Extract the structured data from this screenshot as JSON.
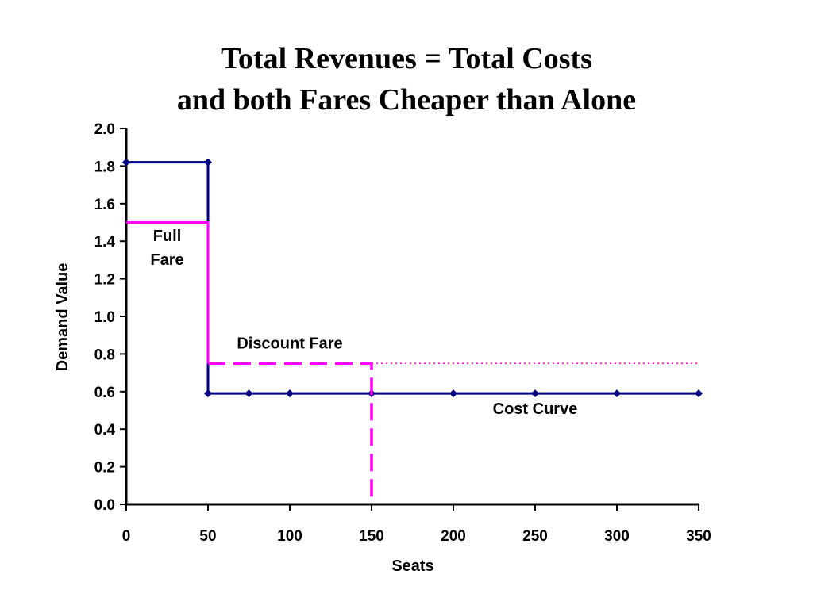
{
  "title_lines": [
    "Total Revenues = Total Costs",
    "and both Fares Cheaper than Alone"
  ],
  "chart_data": {
    "type": "line",
    "xlabel": "Seats",
    "ylabel": "Demand Value",
    "xlim": [
      0,
      350
    ],
    "ylim": [
      0,
      2.0
    ],
    "x_ticks": [
      0,
      50,
      100,
      150,
      200,
      250,
      300,
      350
    ],
    "x_tick_labels": [
      "0",
      "50",
      "100",
      "150",
      "200",
      "250",
      "300",
      "350"
    ],
    "y_ticks": [
      0,
      0.2,
      0.4,
      0.6,
      0.8,
      1.0,
      1.2,
      1.4,
      1.6,
      1.8,
      2.0
    ],
    "y_tick_labels": [
      "0.0",
      "0.2",
      "0.4",
      "0.6",
      "0.8",
      "1.0",
      "1.2",
      "1.4",
      "1.6",
      "1.8",
      "2.0"
    ],
    "grid": false,
    "series": [
      {
        "color": "#000080",
        "style": "solid",
        "markers": true,
        "points": [
          [
            0,
            1.82
          ],
          [
            50,
            1.82
          ],
          [
            50,
            0.59
          ],
          [
            75,
            0.59
          ],
          [
            100,
            0.59
          ],
          [
            150,
            0.59
          ],
          [
            200,
            0.59
          ],
          [
            250,
            0.59
          ],
          [
            300,
            0.59
          ],
          [
            350,
            0.59
          ]
        ]
      },
      {
        "color": "#ff00ff",
        "style": "solid",
        "markers": false,
        "points": [
          [
            0,
            1.5
          ],
          [
            50,
            1.5
          ],
          [
            50,
            0.75
          ]
        ]
      },
      {
        "color": "#ff00ff",
        "style": "dashed",
        "markers": false,
        "points": [
          [
            50,
            0.75
          ],
          [
            150,
            0.75
          ],
          [
            150,
            0
          ]
        ]
      },
      {
        "color": "#ff00ff",
        "style": "dotted",
        "markers": false,
        "points": [
          [
            150,
            0.75
          ],
          [
            350,
            0.75
          ]
        ]
      }
    ],
    "annotations": [
      {
        "lines": [
          "Full",
          "Fare"
        ],
        "x": 25,
        "y": 1.4
      },
      {
        "lines": [
          "Discount Fare"
        ],
        "x": 100,
        "y": 0.83
      },
      {
        "lines": [
          "Cost Curve"
        ],
        "x": 250,
        "y": 0.48
      }
    ]
  }
}
